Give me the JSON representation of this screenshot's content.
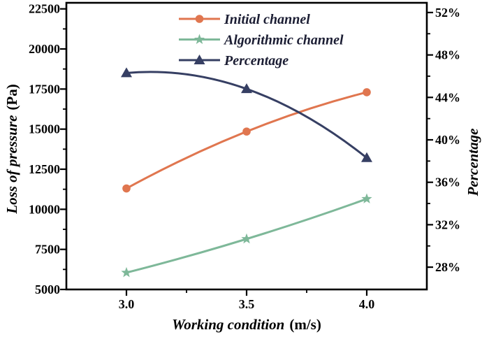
{
  "chart_data": {
    "type": "line",
    "title": "",
    "x": [
      3.0,
      3.5,
      4.0
    ],
    "series": [
      {
        "name": "Initial channel",
        "axis": "left",
        "color": "#E0764F",
        "marker": "circle",
        "values": [
          11300,
          14850,
          17300
        ]
      },
      {
        "name": "Algorithmic channel",
        "axis": "left",
        "color": "#7EB899",
        "marker": "star",
        "values": [
          6050,
          8150,
          10650
        ]
      },
      {
        "name": "Percentage",
        "axis": "right",
        "color": "#363F63",
        "marker": "triangle",
        "values": [
          46.3,
          44.8,
          38.3
        ]
      }
    ],
    "xlabel": {
      "text": "Working condition",
      "unit": "(m/s)"
    },
    "ylabel_left": {
      "text": "Loss of pressure",
      "unit": "(Pa)"
    },
    "ylabel_right": {
      "text": "Percentage"
    },
    "axes": {
      "x": {
        "range": [
          2.75,
          4.25
        ],
        "major": [
          3.0,
          3.5,
          4.0
        ],
        "labels": [
          "3.0",
          "3.5",
          "4.0"
        ],
        "minor": [
          3.25,
          3.75
        ]
      },
      "left": {
        "range": [
          5000,
          22500
        ],
        "major": [
          5000,
          7500,
          10000,
          12500,
          15000,
          17500,
          20000,
          22500
        ],
        "labels": [
          "5000",
          "7500",
          "10000",
          "12500",
          "15000",
          "17500",
          "20000",
          "22500"
        ],
        "minor": [
          6250,
          8750,
          11250,
          13750,
          16250,
          18750,
          21250
        ]
      },
      "right": {
        "range": [
          28,
          52
        ],
        "major": [
          28,
          32,
          36,
          40,
          44,
          48,
          52
        ],
        "labels": [
          "28%",
          "32%",
          "36%",
          "40%",
          "44%",
          "48%",
          "52%"
        ],
        "minor": [
          30,
          34,
          38,
          42,
          46,
          50
        ]
      }
    },
    "legend": {
      "position": "top-center",
      "entries": [
        "Initial channel",
        "Algorithmic channel",
        "Percentage"
      ]
    },
    "grid": false,
    "colors": {
      "axis": "#000000",
      "tick_text": "#000000",
      "legend_text": "#1B1D33"
    }
  }
}
